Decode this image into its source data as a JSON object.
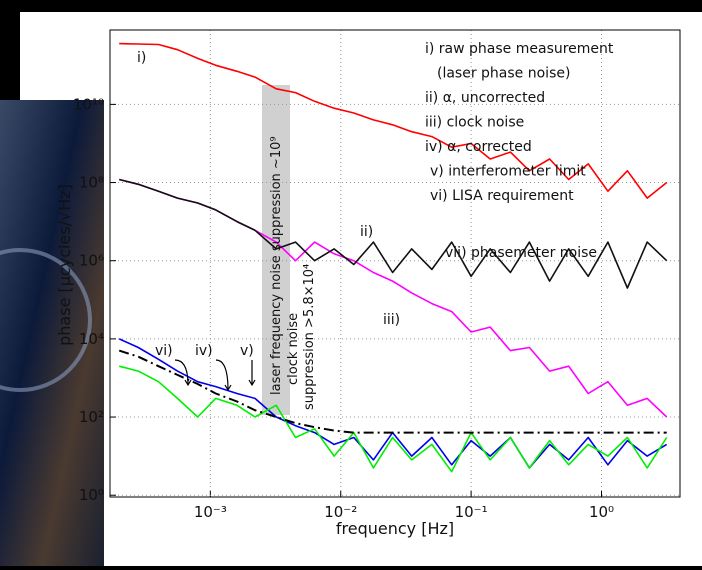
{
  "chart_data": {
    "type": "line",
    "xlabel": "frequency [Hz]",
    "ylabel": "phase [µcycles/√Hz]",
    "xscale": "log",
    "yscale": "log",
    "grid": true,
    "xlim": [
      0.00017,
      4
    ],
    "ylim": [
      0.9,
      800000000000
    ],
    "xticks": [
      {
        "value": 0.001,
        "label": "10⁻³"
      },
      {
        "value": 0.01,
        "label": "10⁻²"
      },
      {
        "value": 0.1,
        "label": "10⁻¹"
      },
      {
        "value": 1,
        "label": "10⁰"
      }
    ],
    "yticks": [
      {
        "value": 1,
        "label": "10⁰"
      },
      {
        "value": 100,
        "label": "10²"
      },
      {
        "value": 10000,
        "label": "10⁴"
      },
      {
        "value": 1000000,
        "label": "10⁶"
      },
      {
        "value": 100000000,
        "label": "10⁸"
      },
      {
        "value": 10000000000,
        "label": "10¹⁰"
      }
    ],
    "x": [
      0.0002,
      0.00028,
      0.0004,
      0.00056,
      0.0008,
      0.0011,
      0.0016,
      0.0022,
      0.0032,
      0.0045,
      0.0063,
      0.0089,
      0.0126,
      0.0178,
      0.025,
      0.035,
      0.05,
      0.071,
      0.1,
      0.14,
      0.2,
      0.28,
      0.4,
      0.56,
      0.79,
      1.12,
      1.58,
      2.24,
      3.16
    ],
    "series": [
      {
        "color": "#ff00ff",
        "dash": false,
        "values": [
          120000000,
          90000000,
          60000000,
          40000000,
          30000000,
          20000000,
          10000000,
          6000000,
          3000000,
          1000000,
          3000000,
          1500000,
          1000000,
          500000,
          300000,
          150000,
          80000,
          50000,
          15000,
          20000,
          5000,
          6000,
          1500,
          2000,
          400,
          800,
          200,
          300,
          100
        ]
      },
      {
        "color": "#111111",
        "dash": false,
        "values": [
          120000000,
          90000000,
          60000000,
          40000000,
          30000000,
          20000000,
          10000000,
          6000000,
          2000000,
          3000000,
          1000000,
          2000000,
          800000,
          3000000,
          500000,
          2000000,
          600000,
          3000000,
          400000,
          2000000,
          500000,
          3000000,
          300000,
          2000000,
          400000,
          3000000,
          200000,
          3000000,
          1000000
        ]
      },
      {
        "color": "#ff0000",
        "dash": false,
        "values": [
          360000000000,
          350000000000,
          340000000000,
          250000000000,
          150000000000,
          100000000000,
          70000000000,
          50000000000,
          25000000000,
          20000000000,
          12000000000,
          8000000000,
          6000000000,
          4000000000,
          3000000000,
          2000000000,
          1500000000,
          800000000,
          1000000000,
          400000000,
          600000000,
          200000000,
          400000000,
          120000000,
          300000000,
          60000000,
          200000000,
          40000000,
          100000000
        ]
      },
      {
        "color": "#0000ee",
        "dash": false,
        "values": [
          10000,
          6000,
          3000,
          1500,
          800,
          600,
          400,
          300,
          100,
          60,
          40,
          20,
          30,
          8,
          40,
          10,
          30,
          6,
          25,
          10,
          30,
          5,
          20,
          8,
          30,
          6,
          25,
          10,
          20
        ]
      },
      {
        "color": "#00ee00",
        "dash": false,
        "values": [
          2000,
          1500,
          800,
          300,
          100,
          300,
          200,
          100,
          200,
          30,
          50,
          10,
          40,
          5,
          30,
          8,
          20,
          4,
          40,
          8,
          30,
          5,
          25,
          6,
          20,
          10,
          30,
          5,
          30
        ]
      },
      {
        "color": "#000000",
        "dash": true,
        "values": [
          5000,
          3500,
          2000,
          1200,
          700,
          400,
          250,
          150,
          100,
          70,
          55,
          45,
          40,
          40,
          40,
          40,
          40,
          40,
          40,
          40,
          40,
          40,
          40,
          40,
          40,
          40,
          40,
          40,
          40
        ]
      }
    ],
    "legend_lines": [
      "i) raw phase measurement",
      "(laser phase noise)",
      "ii) α, uncorrected",
      "iii) clock noise",
      "iv) α, corrected",
      "v) interferometer limit",
      "vi) LISA requirement"
    ],
    "curve_labels": [
      "i)",
      "ii)",
      "iii)",
      "vi)",
      "iv)",
      "v)",
      "vii) phasemeter noise"
    ],
    "band_texts": [
      "laser frequency noise suppression ~10⁹",
      "clock noise",
      "suppression >5.8×10⁴"
    ]
  }
}
